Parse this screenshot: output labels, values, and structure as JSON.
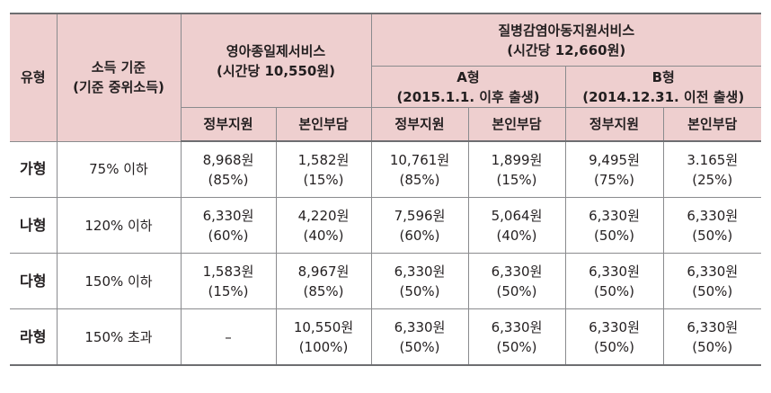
{
  "table": {
    "header": {
      "type": "유형",
      "income_line1": "소득 기준",
      "income_line2": "(기준 중위소득)",
      "service1_line1": "영아종일제서비스",
      "service1_line2": "(시간당 10,550원)",
      "service2_line1": "질병감염아동지원서비스",
      "service2_line2": "(시간당 12,660원)",
      "typeA_line1": "A형",
      "typeA_line2": "(2015.1.1. 이후 출생)",
      "typeB_line1": "B형",
      "typeB_line2": "(2014.12.31. 이전 출생)",
      "sub": [
        "정부지원",
        "본인부담",
        "정부지원",
        "본인부담",
        "정부지원",
        "본인부담"
      ]
    },
    "rows": [
      {
        "type": "가형",
        "income": "75% 이하",
        "cells": [
          {
            "amount": "8,968원",
            "pct": "(85%)"
          },
          {
            "amount": "1,582원",
            "pct": "(15%)"
          },
          {
            "amount": "10,761원",
            "pct": "(85%)"
          },
          {
            "amount": "1,899원",
            "pct": "(15%)"
          },
          {
            "amount": "9,495원",
            "pct": "(75%)"
          },
          {
            "amount": "3.165원",
            "pct": "(25%)"
          }
        ]
      },
      {
        "type": "나형",
        "income": "120% 이하",
        "cells": [
          {
            "amount": "6,330원",
            "pct": "(60%)"
          },
          {
            "amount": "4,220원",
            "pct": "(40%)"
          },
          {
            "amount": "7,596원",
            "pct": "(60%)"
          },
          {
            "amount": "5,064원",
            "pct": "(40%)"
          },
          {
            "amount": "6,330원",
            "pct": "(50%)"
          },
          {
            "amount": "6,330원",
            "pct": "(50%)"
          }
        ]
      },
      {
        "type": "다형",
        "income": "150% 이하",
        "cells": [
          {
            "amount": "1,583원",
            "pct": "(15%)"
          },
          {
            "amount": "8,967원",
            "pct": "(85%)"
          },
          {
            "amount": "6,330원",
            "pct": "(50%)"
          },
          {
            "amount": "6,330원",
            "pct": "(50%)"
          },
          {
            "amount": "6,330원",
            "pct": "(50%)"
          },
          {
            "amount": "6,330원",
            "pct": "(50%)"
          }
        ]
      },
      {
        "type": "라형",
        "income": "150% 초과",
        "cells": [
          {
            "amount": "–",
            "pct": ""
          },
          {
            "amount": "10,550원",
            "pct": "(100%)"
          },
          {
            "amount": "6,330원",
            "pct": "(50%)"
          },
          {
            "amount": "6,330원",
            "pct": "(50%)"
          },
          {
            "amount": "6,330원",
            "pct": "(50%)"
          },
          {
            "amount": "6,330원",
            "pct": "(50%)"
          }
        ]
      }
    ]
  }
}
